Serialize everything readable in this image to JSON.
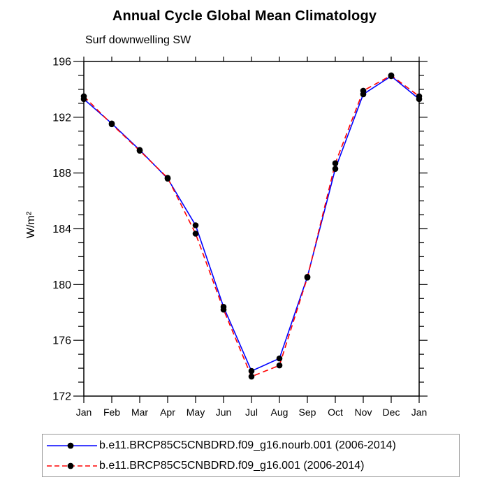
{
  "chart_data": {
    "type": "line",
    "title": "Annual Cycle Global Mean Climatology",
    "subtitle": "Surf downwelling SW",
    "ylabel": "W/m²",
    "xlabel": "",
    "categories": [
      "Jan",
      "Feb",
      "Mar",
      "Apr",
      "May",
      "Jun",
      "Jul",
      "Aug",
      "Sep",
      "Oct",
      "Nov",
      "Dec",
      "Jan"
    ],
    "ylim": [
      172,
      196
    ],
    "ytick_major": [
      172,
      176,
      180,
      184,
      188,
      192,
      196
    ],
    "ytick_minor_step": 1,
    "grid": false,
    "frame": "box-with-outward-ticks",
    "legend_position": "bottom-left-box",
    "marker": "filled-circle",
    "marker_color": "#000000",
    "series": [
      {
        "name": "b.e11.BRCP85C5CNBDRD.f09_g16.nourb.001 (2006-2014)",
        "color": "#0000ff",
        "line_style": "solid",
        "values": [
          193.3,
          191.55,
          189.65,
          187.6,
          184.25,
          178.4,
          173.8,
          174.7,
          180.55,
          188.3,
          193.65,
          194.95,
          193.3
        ]
      },
      {
        "name": "b.e11.BRCP85C5CNBDRD.f09_g16.001 (2006-2014)",
        "color": "#ff0000",
        "line_style": "dashed",
        "values": [
          193.5,
          191.5,
          189.6,
          187.65,
          183.65,
          178.2,
          173.4,
          174.2,
          180.5,
          188.7,
          193.9,
          195.0,
          193.5
        ]
      }
    ]
  }
}
